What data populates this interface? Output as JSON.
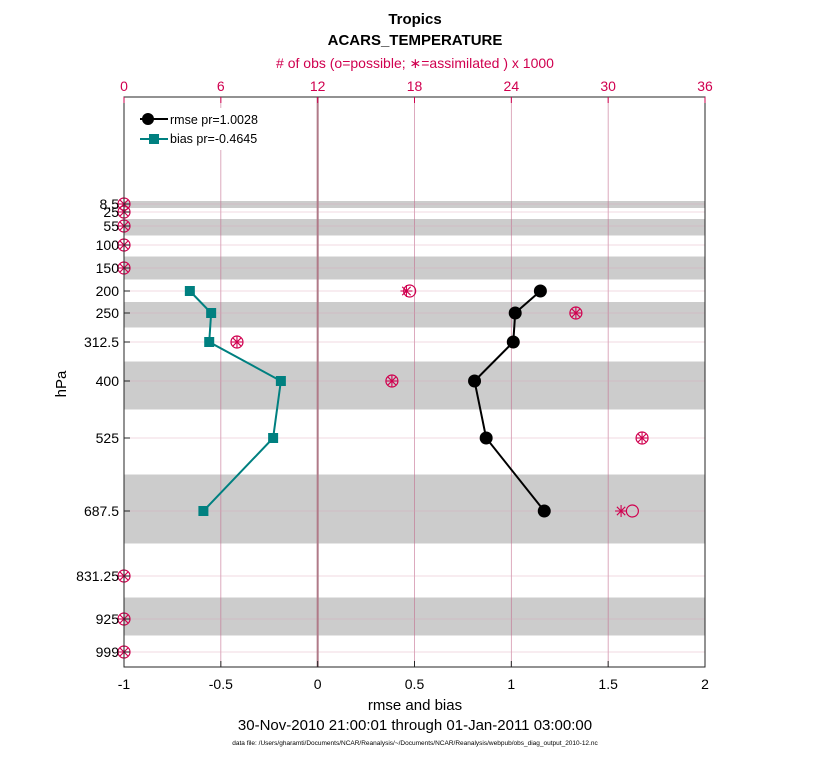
{
  "chart_data": {
    "type": "line",
    "title": "Tropics",
    "subtitle": "ACARS_TEMPERATURE",
    "xlabel": "rmse and bias",
    "ylabel": "hPa",
    "top_xlabel": "# of obs (o=possible; ∗=assimilated ) x 1000",
    "date_range": "30-Nov-2010 21:00:01 through 01-Jan-2011 03:00:00",
    "file_note": "data file: /Users/gharamti/Documents/NCAR/Reanalysis/~/Documents/NCAR/Reanalysis/webpub/obs_diag_output_2010-12.nc",
    "xlim": [
      -1,
      2
    ],
    "x_ticks": [
      "-1",
      "-0.5",
      "0",
      "0.5",
      "1",
      "1.5",
      "2"
    ],
    "top_xlim": [
      0,
      36
    ],
    "top_ticks": [
      "0",
      "6",
      "12",
      "18",
      "24",
      "30",
      "36"
    ],
    "y_ticks": [
      "8.5",
      "25",
      "55",
      "100",
      "150",
      "200",
      "250",
      "312.5",
      "400",
      "525",
      "687.5",
      "831.25",
      "925",
      "999"
    ],
    "levels": [
      8.5,
      25,
      55,
      100,
      150,
      200,
      250,
      312.5,
      400,
      525,
      687.5,
      831.25,
      925,
      999
    ],
    "series": [
      {
        "name": "rmse pr=1.0028",
        "color": "#000000",
        "marker": "circle",
        "levels": [
          200,
          250,
          312.5,
          400,
          525,
          687.5
        ],
        "values": [
          1.15,
          1.02,
          1.01,
          0.81,
          0.87,
          1.17
        ]
      },
      {
        "name": "bias pr=-0.4645",
        "color": "#008080",
        "marker": "square",
        "levels": [
          200,
          250,
          312.5,
          400,
          525,
          687.5
        ],
        "values": [
          -0.66,
          -0.55,
          -0.56,
          -0.19,
          -0.23,
          -0.59
        ]
      }
    ],
    "obs_counts": {
      "unit": "x 1000",
      "levels": [
        8.5,
        25,
        55,
        100,
        150,
        200,
        250,
        312.5,
        400,
        525,
        687.5,
        831.25,
        925,
        999
      ],
      "possible": [
        0,
        0,
        0,
        0,
        0,
        17.7,
        28.0,
        7.0,
        16.6,
        32.1,
        31.5,
        0,
        0,
        0
      ],
      "assimilated": [
        0,
        0,
        0,
        0,
        0,
        17.5,
        28.0,
        7.0,
        16.6,
        32.1,
        30.8,
        0,
        0,
        0
      ]
    },
    "grid": true,
    "legend_position": "top-left",
    "colors": {
      "rmse": "#000000",
      "bias": "#008080",
      "obs": "#d0004f",
      "band": "#cccccc",
      "grid": "#c2688a"
    }
  }
}
